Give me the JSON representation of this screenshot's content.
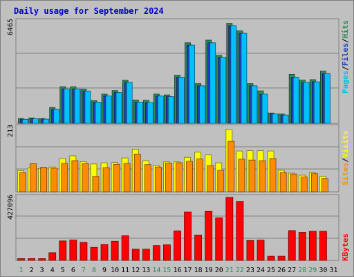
{
  "chart_data": [
    {
      "type": "bar",
      "title": "Daily usage for September 2024",
      "categories": [
        "1",
        "2",
        "3",
        "4",
        "5",
        "6",
        "7",
        "8",
        "9",
        "10",
        "11",
        "12",
        "13",
        "14",
        "15",
        "16",
        "17",
        "18",
        "19",
        "20",
        "21",
        "22",
        "23",
        "24",
        "25",
        "26",
        "27",
        "28",
        "29",
        "30",
        "31"
      ],
      "weekend_days": [
        "1",
        "7",
        "8",
        "14",
        "15",
        "21",
        "22",
        "28",
        "29"
      ],
      "ymax_label": "6465",
      "ylim": [
        0,
        6465
      ],
      "series": [
        {
          "name": "Hits",
          "color": "#2e8b57",
          "values": [
            300,
            340,
            300,
            1000,
            2320,
            2320,
            2160,
            1440,
            1850,
            2080,
            2730,
            1480,
            1460,
            1850,
            1800,
            3050,
            5110,
            2520,
            5280,
            4310,
            6350,
            5870,
            2520,
            2060,
            650,
            590,
            3100,
            2740,
            2770,
            3310,
            0
          ]
        },
        {
          "name": "Files",
          "color": "#1f3fbf",
          "values": [
            250,
            290,
            260,
            890,
            2180,
            2180,
            2040,
            1330,
            1730,
            1950,
            2600,
            1340,
            1320,
            1730,
            1690,
            2920,
            4960,
            2380,
            5110,
            4180,
            6200,
            5710,
            2380,
            1850,
            600,
            520,
            2920,
            2600,
            2630,
            3150,
            0
          ]
        },
        {
          "name": "Pages",
          "color": "#00bfff",
          "values": [
            250,
            290,
            260,
            890,
            2180,
            2180,
            2040,
            1330,
            1730,
            1950,
            2600,
            1340,
            1320,
            1730,
            1690,
            2920,
            4960,
            2380,
            5110,
            4180,
            6200,
            5710,
            2380,
            1850,
            600,
            520,
            2920,
            2600,
            2630,
            3150,
            0
          ]
        }
      ],
      "legend_text": [
        "Pages",
        "/",
        "Files",
        "/",
        "Hits"
      ]
    },
    {
      "type": "bar",
      "ymax_label": "213",
      "ylim": [
        0,
        213
      ],
      "series": [
        {
          "name": "Visits",
          "color": "#ffff00",
          "values": [
            70,
            79,
            77,
            82,
            110,
            119,
            100,
            92,
            96,
            97,
            112,
            141,
            103,
            87,
            99,
            99,
            114,
            131,
            122,
            96,
            206,
            135,
            136,
            136,
            135,
            71,
            62,
            55,
            63,
            51,
            0
          ]
        },
        {
          "name": "Sites",
          "color": "#ff8c00",
          "values": [
            64,
            93,
            81,
            78,
            94,
            103,
            94,
            51,
            80,
            91,
            94,
            125,
            90,
            82,
            95,
            96,
            101,
            109,
            87,
            71,
            167,
            108,
            105,
            103,
            110,
            64,
            59,
            49,
            60,
            44,
            0
          ]
        }
      ],
      "legend_text": [
        "Sites",
        "/",
        "Visits"
      ]
    },
    {
      "type": "bar",
      "ymax_label": "427096",
      "ylim": [
        0,
        427096
      ],
      "series": [
        {
          "name": "KBytes",
          "color": "#ff0000",
          "values": [
            12000,
            12000,
            12000,
            52000,
            132000,
            138000,
            122000,
            88000,
            108000,
            130000,
            167000,
            76000,
            76000,
            100000,
            106000,
            200000,
            328000,
            172000,
            332000,
            288000,
            427096,
            400000,
            135000,
            137000,
            28000,
            28000,
            202000,
            190000,
            197000,
            197000,
            0
          ]
        }
      ],
      "legend_text": [
        "KBytes"
      ]
    }
  ]
}
